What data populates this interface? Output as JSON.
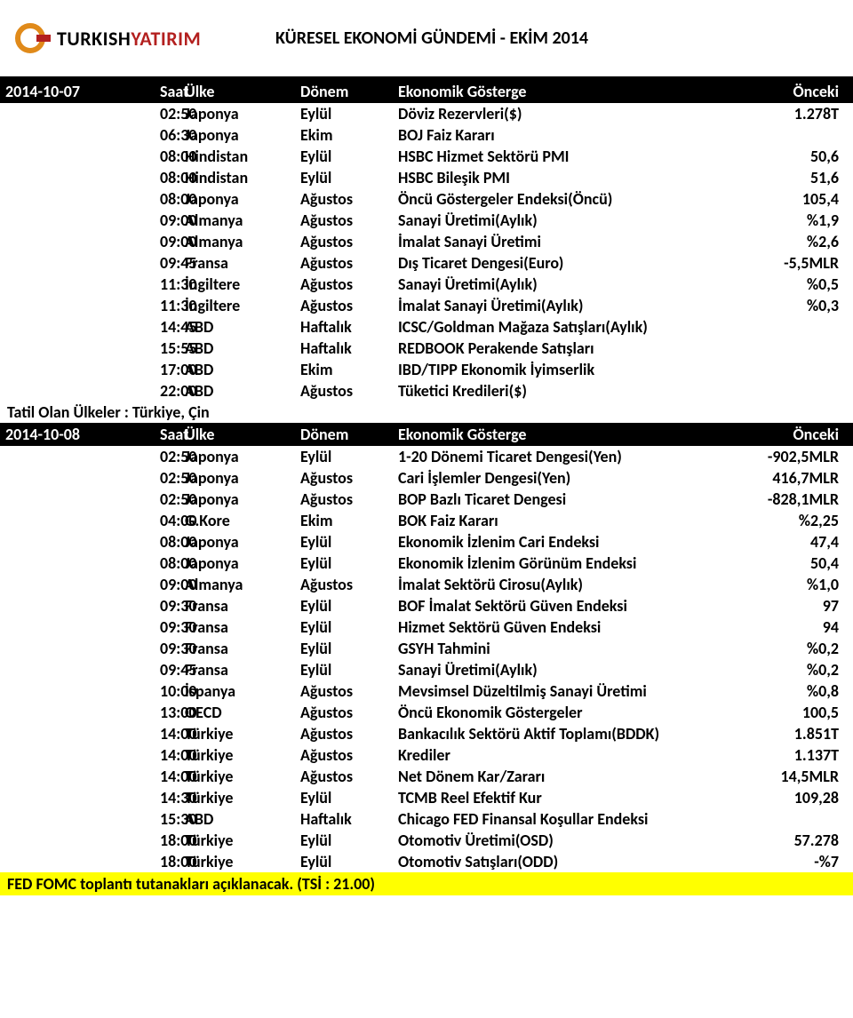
{
  "header": {
    "logo_text_black": "TURKISH",
    "logo_text_red": "YATIRIM",
    "title": "KÜRESEL EKONOMİ GÜNDEMİ - EKİM 2014",
    "logo_color_orange": "#e08a1a",
    "logo_color_red": "#b3201f"
  },
  "columns": {
    "date": "",
    "time": "Saat",
    "country": "Ülke",
    "period": "Dönem",
    "indicator": "Ekonomik Gösterge",
    "prev": "Önceki"
  },
  "sections": [
    {
      "date": "2014-10-07",
      "rows": [
        {
          "time": "02:50",
          "country": "Japonya",
          "period": "Eylül",
          "indicator": "Döviz Rezervleri($)",
          "prev": "1.278T"
        },
        {
          "time": "06:30",
          "country": "Japonya",
          "period": "Ekim",
          "indicator": "BOJ Faiz Kararı",
          "prev": ""
        },
        {
          "time": "08:00",
          "country": "Hindistan",
          "period": "Eylül",
          "indicator": "HSBC Hizmet Sektörü PMI",
          "prev": "50,6"
        },
        {
          "time": "08:00",
          "country": "Hindistan",
          "period": "Eylül",
          "indicator": "HSBC Bileşik PMI",
          "prev": "51,6"
        },
        {
          "time": "08:00",
          "country": "Japonya",
          "period": "Ağustos",
          "indicator": "Öncü Göstergeler Endeksi(Öncü)",
          "prev": "105,4"
        },
        {
          "time": "09:00",
          "country": "Almanya",
          "period": "Ağustos",
          "indicator": "Sanayi Üretimi(Aylık)",
          "prev": "%1,9"
        },
        {
          "time": "09:00",
          "country": "Almanya",
          "period": "Ağustos",
          "indicator": "İmalat Sanayi Üretimi",
          "prev": "%2,6"
        },
        {
          "time": "09:45",
          "country": "Fransa",
          "period": "Ağustos",
          "indicator": "Dış Ticaret Dengesi(Euro)",
          "prev": "-5,5MLR"
        },
        {
          "time": "11:30",
          "country": "İngiltere",
          "period": "Ağustos",
          "indicator": "Sanayi Üretimi(Aylık)",
          "prev": "%0,5"
        },
        {
          "time": "11:30",
          "country": "İngiltere",
          "period": "Ağustos",
          "indicator": "İmalat Sanayi Üretimi(Aylık)",
          "prev": "%0,3"
        },
        {
          "time": "14:45",
          "country": "ABD",
          "period": "Haftalık",
          "indicator": "ICSC/Goldman Mağaza Satışları(Aylık)",
          "prev": ""
        },
        {
          "time": "15:55",
          "country": "ABD",
          "period": "Haftalık",
          "indicator": "REDBOOK Perakende Satışları",
          "prev": ""
        },
        {
          "time": "17:00",
          "country": "ABD",
          "period": "Ekim",
          "indicator": "IBD/TIPP Ekonomik İyimserlik",
          "prev": ""
        },
        {
          "time": "22:00",
          "country": "ABD",
          "period": "Ağustos",
          "indicator": "Tüketici Kredileri($)",
          "prev": ""
        }
      ],
      "note": "Tatil Olan Ülkeler : Türkiye, Çin"
    },
    {
      "date": "2014-10-08",
      "rows": [
        {
          "time": "02:50",
          "country": "Japonya",
          "period": "Eylül",
          "indicator": "1-20 Dönemi Ticaret Dengesi(Yen)",
          "prev": "-902,5MLR"
        },
        {
          "time": "02:50",
          "country": "Japonya",
          "period": "Ağustos",
          "indicator": "Cari İşlemler Dengesi(Yen)",
          "prev": "416,7MLR"
        },
        {
          "time": "02:50",
          "country": "Japonya",
          "period": "Ağustos",
          "indicator": "BOP Bazlı Ticaret Dengesi",
          "prev": "-828,1MLR"
        },
        {
          "time": "04:00",
          "country": "G.Kore",
          "period": "Ekim",
          "indicator": "BOK Faiz Kararı",
          "prev": "%2,25"
        },
        {
          "time": "08:00",
          "country": "Japonya",
          "period": "Eylül",
          "indicator": "Ekonomik İzlenim Cari Endeksi",
          "prev": "47,4"
        },
        {
          "time": "08:00",
          "country": "Japonya",
          "period": "Eylül",
          "indicator": "Ekonomik İzlenim Görünüm Endeksi",
          "prev": "50,4"
        },
        {
          "time": "09:00",
          "country": "Almanya",
          "period": "Ağustos",
          "indicator": "İmalat Sektörü Cirosu(Aylık)",
          "prev": "%1,0"
        },
        {
          "time": "09:30",
          "country": "Fransa",
          "period": "Eylül",
          "indicator": "BOF İmalat Sektörü Güven Endeksi",
          "prev": "97"
        },
        {
          "time": "09:30",
          "country": "Fransa",
          "period": "Eylül",
          "indicator": "Hizmet Sektörü Güven Endeksi",
          "prev": "94"
        },
        {
          "time": "09:30",
          "country": "Fransa",
          "period": "Eylül",
          "indicator": "GSYH Tahmini",
          "prev": "%0,2"
        },
        {
          "time": "09:45",
          "country": "Fransa",
          "period": "Eylül",
          "indicator": "Sanayi Üretimi(Aylık)",
          "prev": "%0,2"
        },
        {
          "time": "10:00",
          "country": "İspanya",
          "period": "Ağustos",
          "indicator": "Mevsimsel Düzeltilmiş Sanayi Üretimi",
          "prev": "%0,8"
        },
        {
          "time": "13:00",
          "country": "OECD",
          "period": "Ağustos",
          "indicator": "Öncü Ekonomik Göstergeler",
          "prev": "100,5"
        },
        {
          "time": "14:00",
          "country": "Türkiye",
          "period": "Ağustos",
          "indicator": "Bankacılık Sektörü Aktif Toplamı(BDDK)",
          "prev": "1.851T"
        },
        {
          "time": "14:00",
          "country": "Türkiye",
          "period": "Ağustos",
          "indicator": "Krediler",
          "prev": "1.137T"
        },
        {
          "time": "14:00",
          "country": "Türkiye",
          "period": "Ağustos",
          "indicator": "Net Dönem Kar/Zararı",
          "prev": "14,5MLR"
        },
        {
          "time": "14:30",
          "country": "Türkiye",
          "period": "Eylül",
          "indicator": "TCMB Reel Efektif Kur",
          "prev": "109,28"
        },
        {
          "time": "15:30",
          "country": "ABD",
          "period": "Haftalık",
          "indicator": "Chicago FED Finansal Koşullar Endeksi",
          "prev": ""
        },
        {
          "time": "18:00",
          "country": "Türkiye",
          "period": "Eylül",
          "indicator": "Otomotiv Üretimi(OSD)",
          "prev": "57.278"
        },
        {
          "time": "18:00",
          "country": "Türkiye",
          "period": "Eylül",
          "indicator": "Otomotiv Satışları(ODD)",
          "prev": "-%7"
        }
      ],
      "footnote": "FED FOMC toplantı tutanakları açıklanacak. (TSİ : 21.00)"
    }
  ]
}
